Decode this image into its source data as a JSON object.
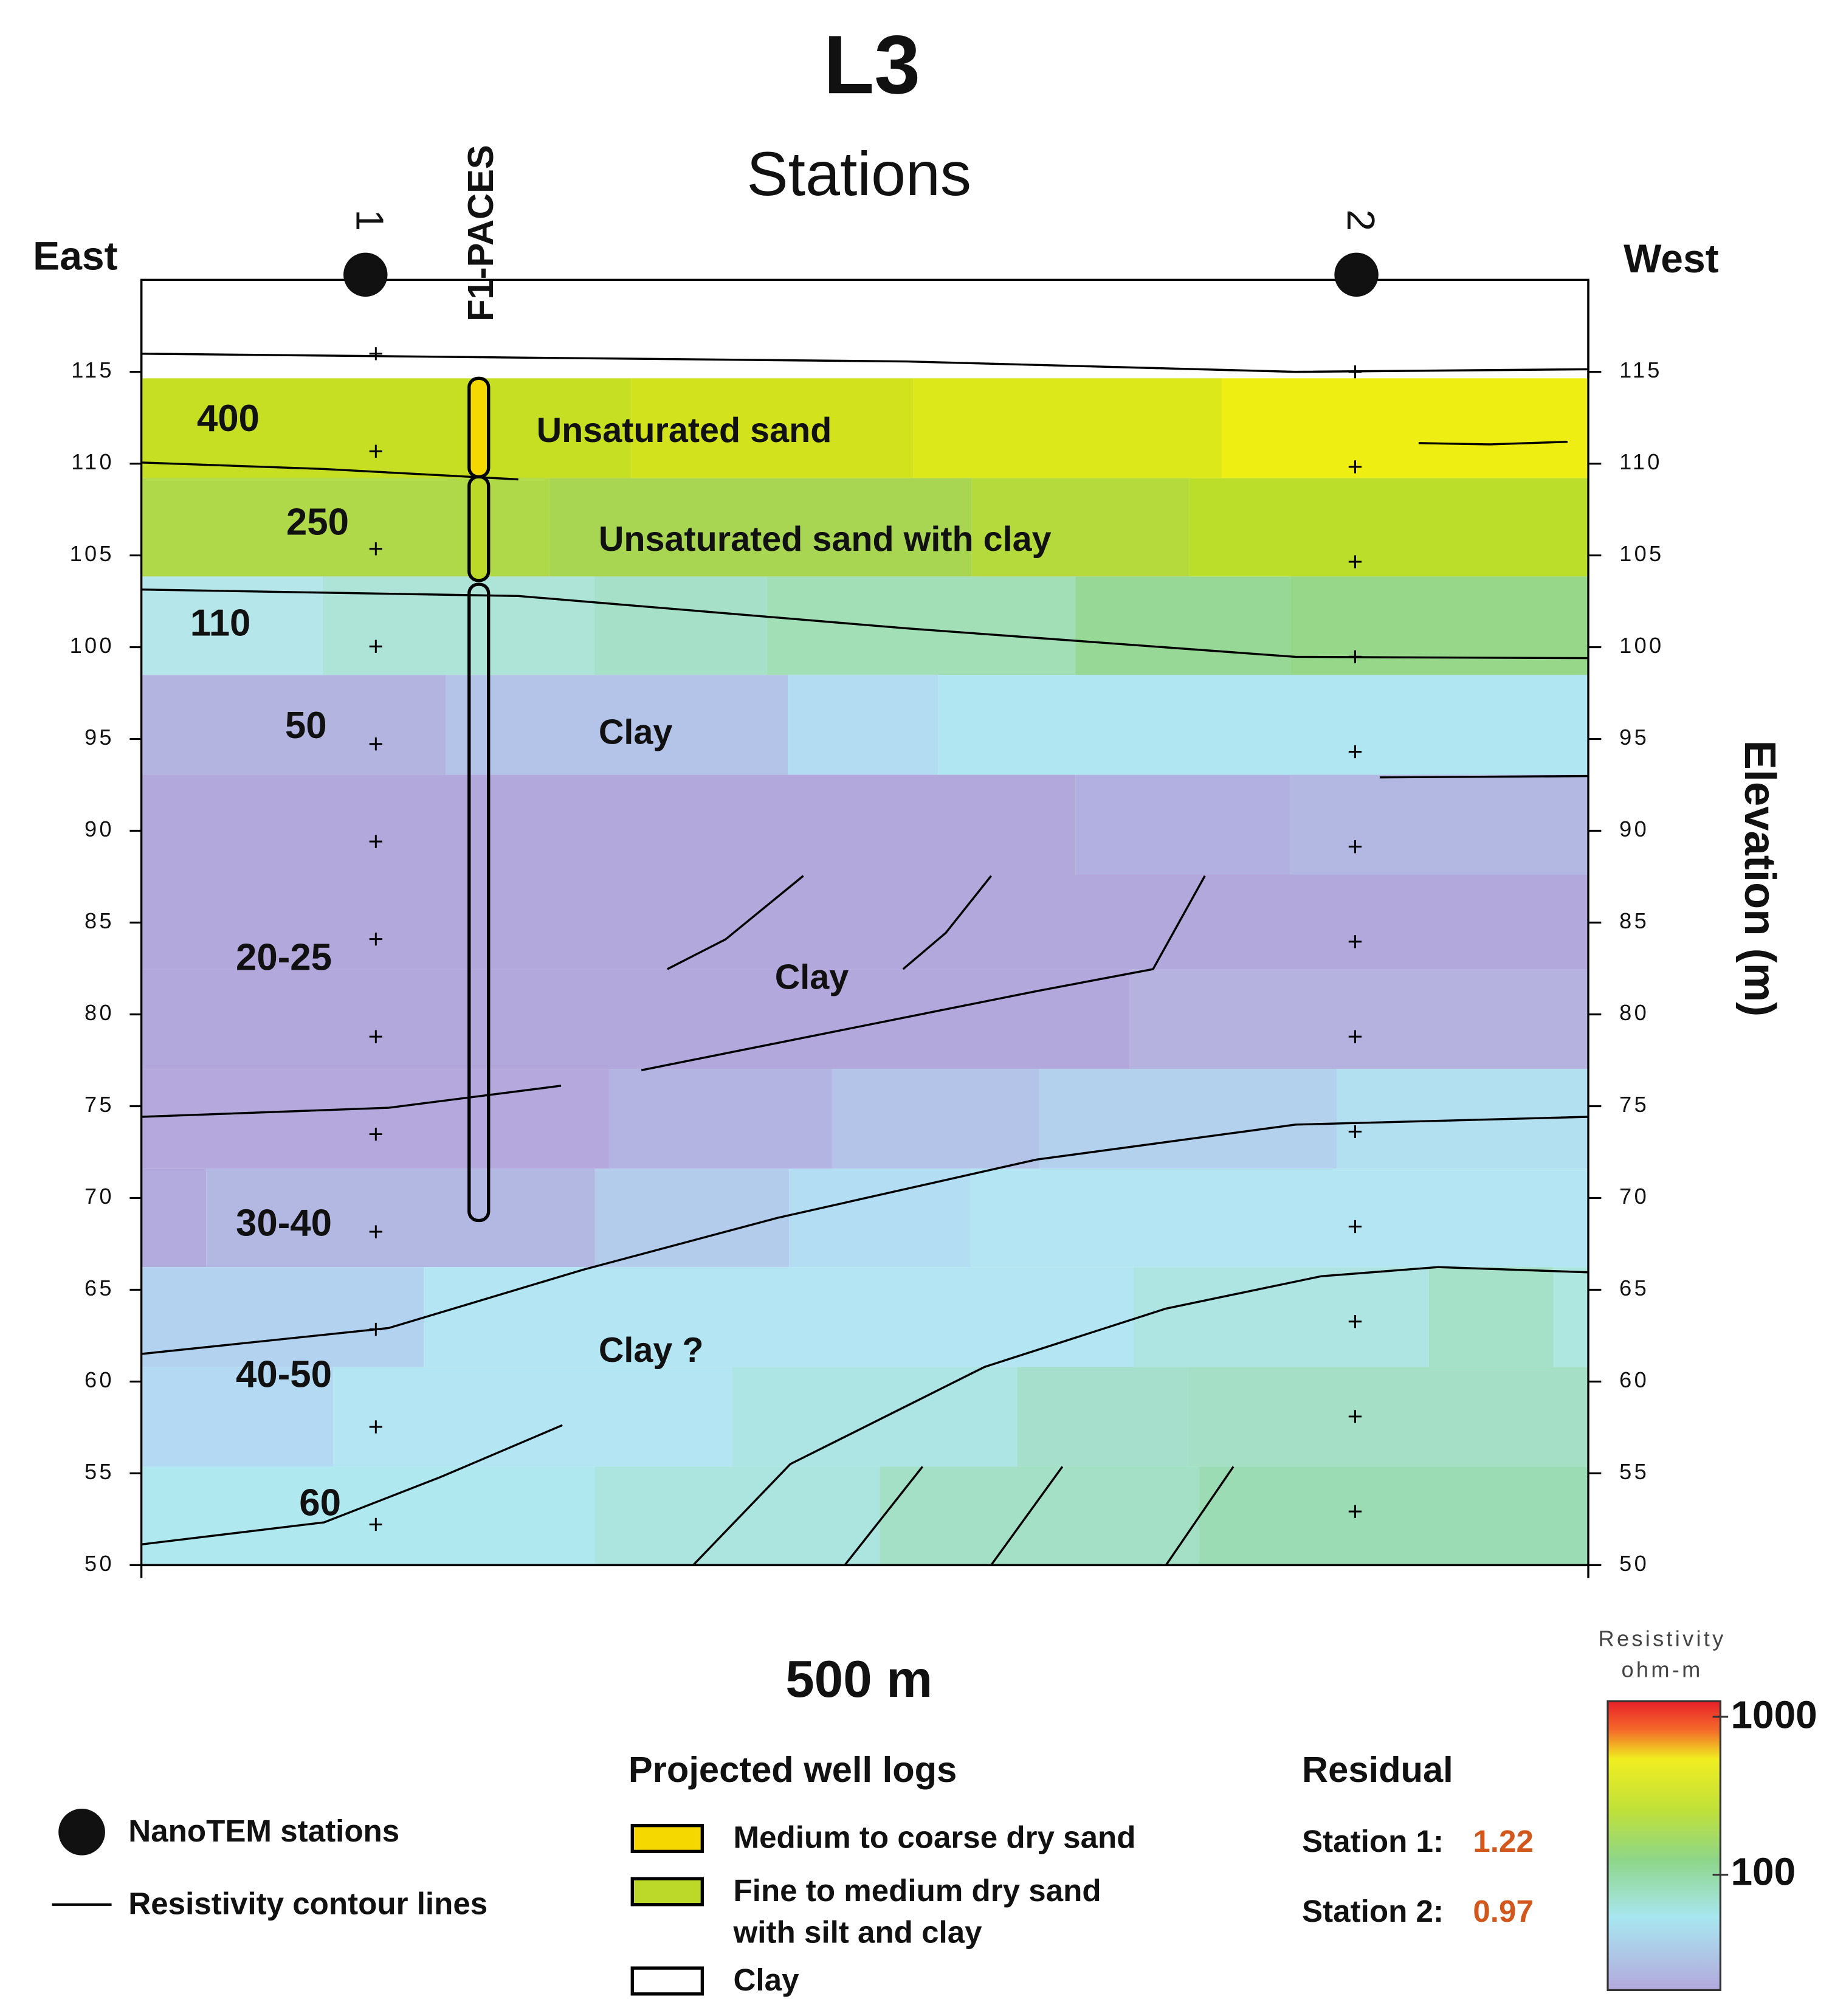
{
  "header": {
    "title": "L3",
    "subtitle": "Stations"
  },
  "directions": {
    "left": "East",
    "right": "West"
  },
  "stations": [
    "1",
    "2"
  ],
  "well_label": "F1-PACES",
  "axis": {
    "label": "Elevation (m)",
    "ticks": [
      115,
      110,
      105,
      100,
      95,
      90,
      85,
      80,
      75,
      70,
      65,
      60,
      55,
      50
    ]
  },
  "layer_labels": [
    "400",
    "250",
    "110",
    "50",
    "20-25",
    "30-40",
    "40-50",
    "60"
  ],
  "annotations": [
    "Unsaturated sand",
    "Unsaturated sand with clay",
    "Clay",
    "Clay",
    "Clay ?"
  ],
  "scale_label": "500 m",
  "legend": {
    "stations": "NanoTEM stations",
    "contours": "Resistivity contour lines"
  },
  "well_logs": {
    "title": "Projected well logs",
    "items": [
      "Medium to coarse dry sand",
      "Fine to medium dry sand",
      "with silt and clay",
      "Clay"
    ]
  },
  "residual": {
    "title": "Residual",
    "rows": [
      {
        "label": "Station 1:",
        "value": 1.22
      },
      {
        "label": "Station 2:",
        "value": 0.97
      }
    ]
  },
  "colorbar": {
    "title": "Resistivity",
    "unit": "ohm-m",
    "labels": [
      "1000",
      "100"
    ]
  }
}
